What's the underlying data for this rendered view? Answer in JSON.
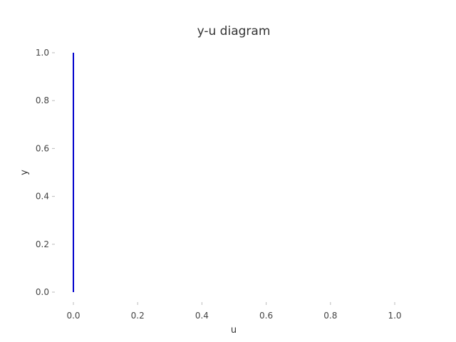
{
  "chart_data": {
    "type": "line",
    "title": "y-u diagram",
    "xlabel": "u",
    "ylabel": "y",
    "xlim": [
      -0.05,
      1.05
    ],
    "ylim": [
      -0.05,
      1.05
    ],
    "xticks": [
      0.0,
      0.2,
      0.4,
      0.6,
      0.8,
      1.0
    ],
    "xtick_labels": [
      "0.0",
      "0.2",
      "0.4",
      "0.6",
      "0.8",
      "1.0"
    ],
    "yticks": [
      0.0,
      0.2,
      0.4,
      0.6,
      0.8,
      1.0
    ],
    "ytick_labels": [
      "0.0",
      "0.2",
      "0.4",
      "0.6",
      "0.8",
      "1.0"
    ],
    "grid": false,
    "series": [
      {
        "color": "#0000cc",
        "x": [
          0.0,
          0.0
        ],
        "y": [
          0.0,
          1.0
        ]
      }
    ]
  }
}
